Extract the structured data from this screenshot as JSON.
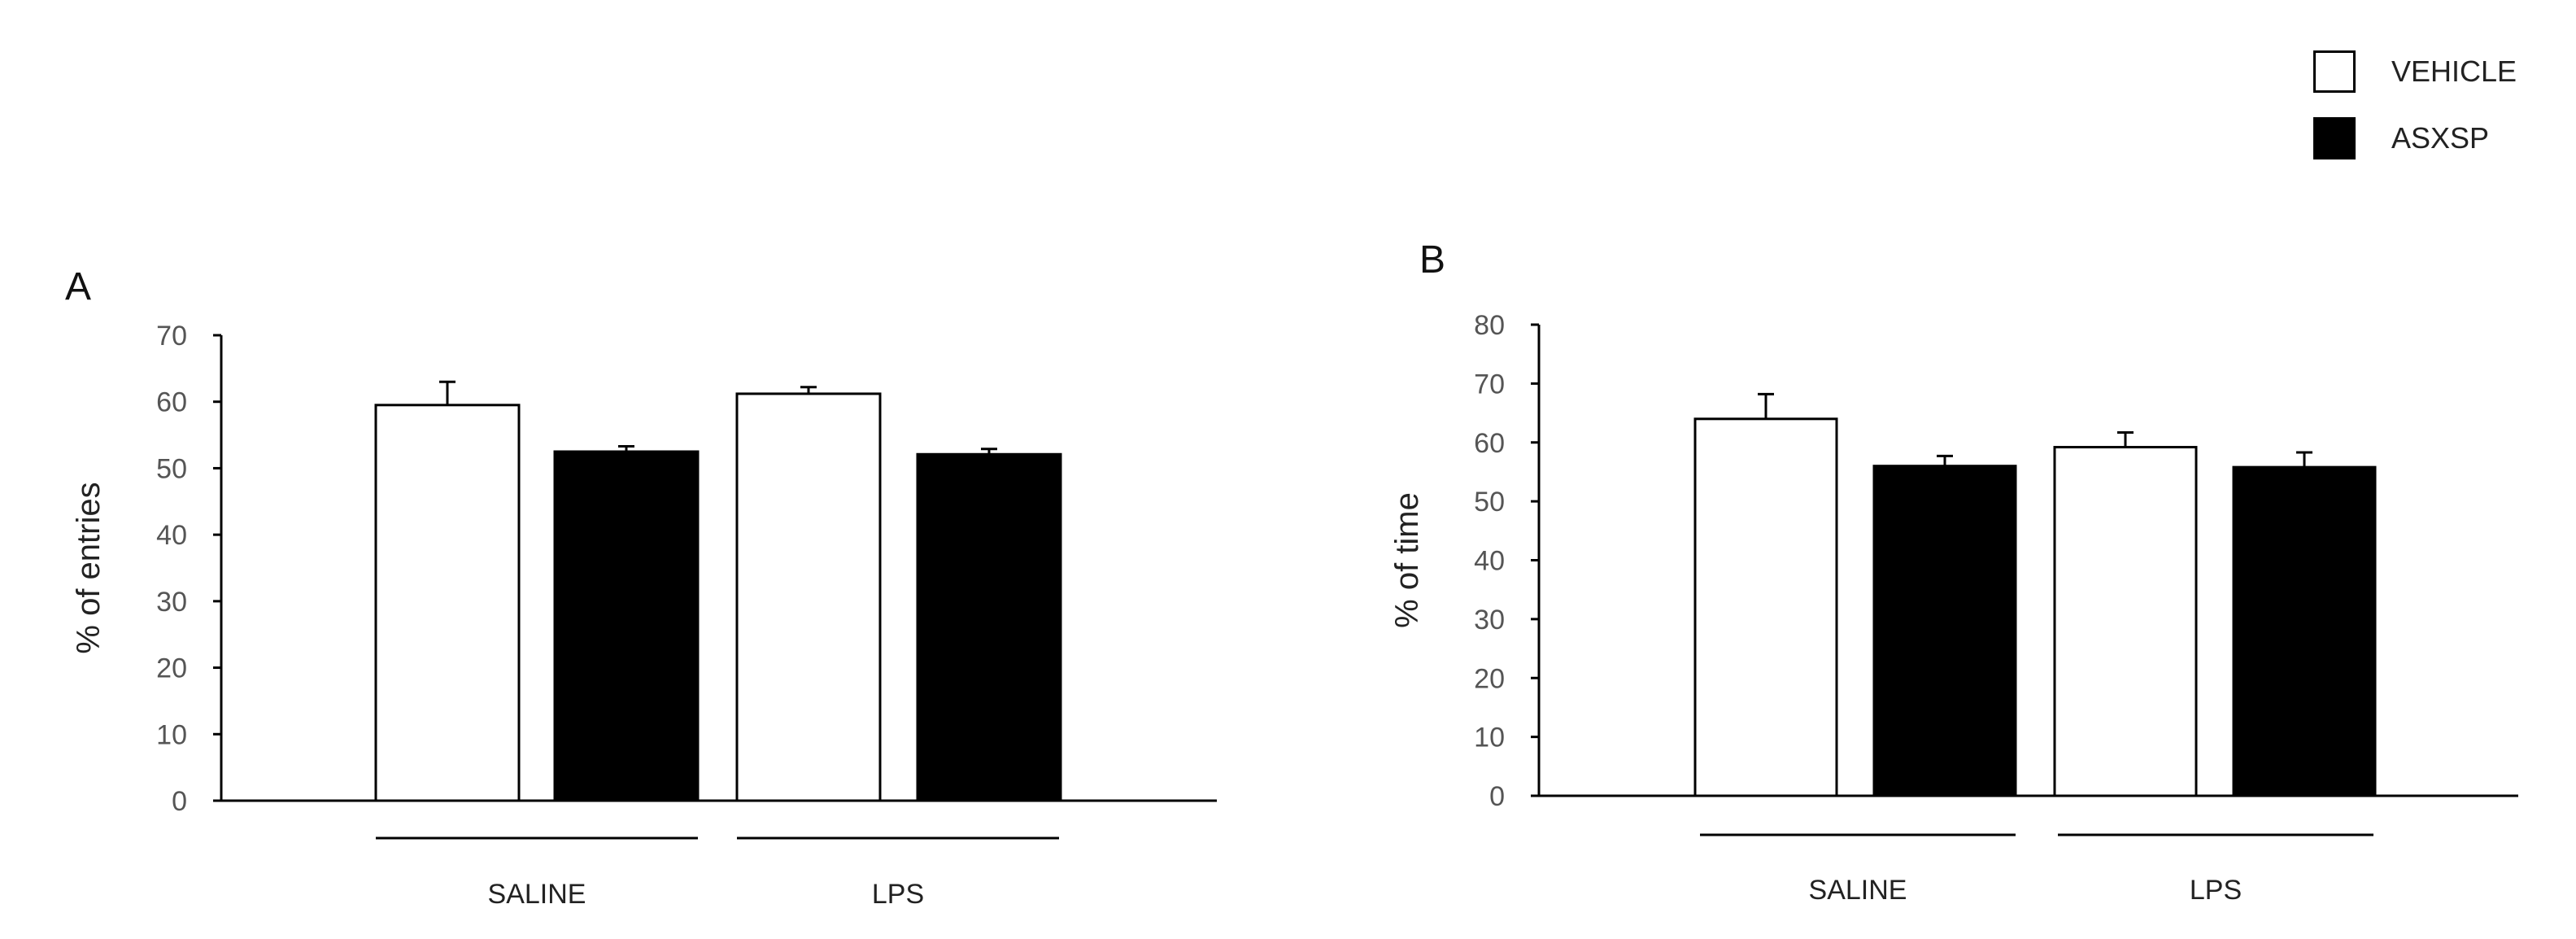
{
  "legend": {
    "items": [
      {
        "label": "VEHICLE",
        "color": "#ffffff"
      },
      {
        "label": "ASXSP",
        "color": "#000000"
      }
    ]
  },
  "chart_data": [
    {
      "type": "bar",
      "panel_label": "A",
      "categories": [
        "SALINE",
        "LPS"
      ],
      "series": [
        {
          "name": "VEHICLE",
          "color": "#ffffff",
          "values": [
            59.5,
            61.2
          ],
          "errors": [
            3.5,
            1.0
          ]
        },
        {
          "name": "ASXSP",
          "color": "#000000",
          "values": [
            52.5,
            52.1
          ],
          "errors": [
            0.8,
            0.8
          ]
        }
      ],
      "ylabel": "% of entries",
      "xlabel": "",
      "ylim": [
        0,
        70
      ],
      "yticks": [
        0,
        10,
        20,
        30,
        40,
        50,
        60,
        70
      ],
      "grid": false
    },
    {
      "type": "bar",
      "panel_label": "B",
      "categories": [
        "SALINE",
        "LPS"
      ],
      "series": [
        {
          "name": "VEHICLE",
          "color": "#ffffff",
          "values": [
            64.0,
            59.2
          ],
          "errors": [
            4.2,
            2.5
          ]
        },
        {
          "name": "ASXSP",
          "color": "#000000",
          "values": [
            56.0,
            55.8
          ],
          "errors": [
            1.7,
            2.5
          ]
        }
      ],
      "ylabel": "% of time",
      "xlabel": "",
      "ylim": [
        0,
        80
      ],
      "yticks": [
        0,
        10,
        20,
        30,
        40,
        50,
        60,
        70,
        80
      ],
      "grid": false
    }
  ]
}
